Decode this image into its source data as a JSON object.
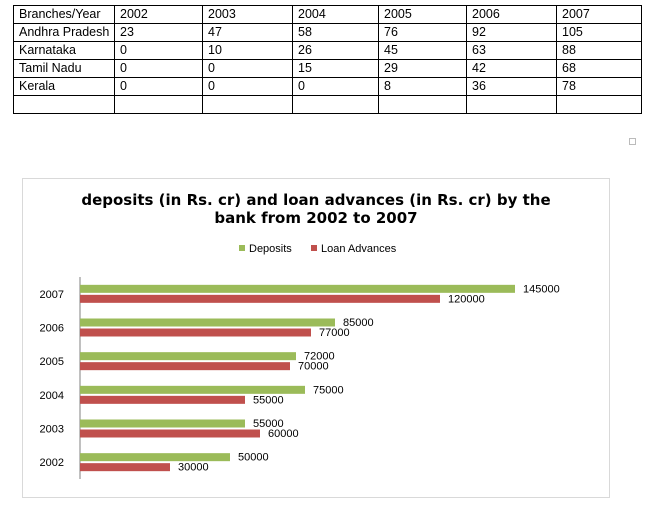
{
  "table": {
    "header": [
      "Branches/Year",
      "2002",
      "2003",
      "2004",
      "2005",
      "2006",
      "2007"
    ],
    "rows": [
      [
        "Andhra Pradesh",
        "23",
        "47",
        "58",
        "76",
        "92",
        "105"
      ],
      [
        "Karnataka",
        "0",
        "10",
        "26",
        "45",
        "63",
        "88"
      ],
      [
        "Tamil Nadu",
        "0",
        "0",
        "15",
        "29",
        "42",
        "68"
      ],
      [
        "Kerala",
        "0",
        "0",
        "0",
        "8",
        "36",
        "78"
      ],
      [
        "",
        "",
        "",
        "",
        "",
        "",
        ""
      ]
    ]
  },
  "chart_data": {
    "type": "bar",
    "orientation": "horizontal",
    "title_line1": "deposits (in Rs. cr) and loan advances (in Rs. cr) by the",
    "title_line2": "bank from 2002 to 2007",
    "categories": [
      "2002",
      "2003",
      "2004",
      "2005",
      "2006",
      "2007"
    ],
    "series": [
      {
        "name": "Deposits",
        "color": "#9bbb59",
        "values": [
          50000,
          55000,
          75000,
          72000,
          85000,
          145000
        ]
      },
      {
        "name": "Loan Advances",
        "color": "#c0504d",
        "values": [
          30000,
          60000,
          55000,
          70000,
          77000,
          120000
        ]
      }
    ],
    "xlim": [
      0,
      160000
    ],
    "legend": "top",
    "grid": false
  }
}
